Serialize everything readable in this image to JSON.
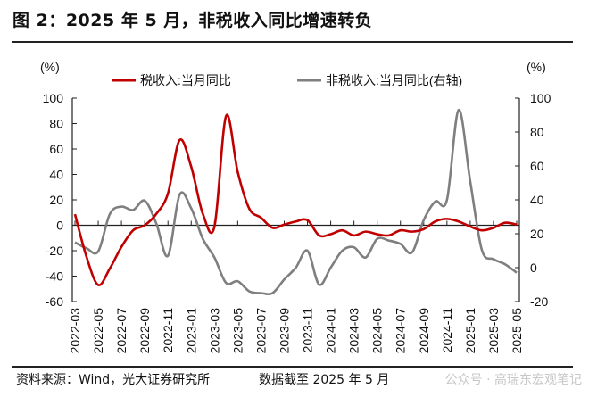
{
  "title": "图 2：2025 年 5 月，非税收入同比增速转负",
  "footer": {
    "source": "资料来源：Wind，光大证券研究所",
    "date_note": "数据截至 2025 年 5 月",
    "watermark": "公众号 · 高瑞东宏观笔记"
  },
  "chart_data": {
    "type": "line",
    "title": "",
    "left_axis": {
      "unit_label": "(%)",
      "range": [
        -60,
        100
      ],
      "ticks": [
        100,
        80,
        60,
        40,
        20,
        0,
        -20,
        -40,
        -60
      ]
    },
    "right_axis": {
      "unit_label": "(%)",
      "range": [
        -20,
        100
      ],
      "ticks": [
        100,
        80,
        60,
        40,
        20,
        0,
        -20
      ]
    },
    "grid": false,
    "legend_position": "top",
    "x_tick_labels": [
      "2022-03",
      "2022-05",
      "2022-07",
      "2022-09",
      "2022-11",
      "2023-01",
      "2023-03",
      "2023-05",
      "2023-07",
      "2023-09",
      "2023-11",
      "2024-01",
      "2024-03",
      "2024-05",
      "2024-07",
      "2024-09",
      "2024-11",
      "2025-01",
      "2025-03",
      "2025-05"
    ],
    "x": [
      "2022-03",
      "2022-04",
      "2022-05",
      "2022-06",
      "2022-07",
      "2022-08",
      "2022-09",
      "2022-10",
      "2022-11",
      "2022-12",
      "2023-01",
      "2023-02",
      "2023-03",
      "2023-04",
      "2023-05",
      "2023-06",
      "2023-07",
      "2023-08",
      "2023-09",
      "2023-10",
      "2023-11",
      "2023-12",
      "2024-01",
      "2024-02",
      "2024-03",
      "2024-04",
      "2024-05",
      "2024-06",
      "2024-07",
      "2024-08",
      "2024-09",
      "2024-10",
      "2024-11",
      "2024-12",
      "2025-01",
      "2025-02",
      "2025-03",
      "2025-04",
      "2025-05"
    ],
    "series": [
      {
        "name": "税收入:当月同比",
        "axis": "left",
        "color": "#c00000",
        "values": [
          8.7,
          -25,
          -47,
          -34,
          -17,
          -4,
          0,
          9,
          25,
          67,
          46,
          9,
          -1,
          86,
          42,
          13,
          6,
          -2,
          0.5,
          3,
          4,
          -8,
          -7,
          -4,
          -8,
          -5,
          -7,
          -8,
          -4,
          -5,
          -3,
          3,
          5,
          3,
          -1,
          -4,
          -2,
          2,
          0.5
        ]
      },
      {
        "name": "非税收入:当月同比(右轴)",
        "axis": "right",
        "color": "#7f7f7f",
        "values": [
          14.9,
          11.4,
          9.6,
          31.6,
          36,
          34,
          39.5,
          26,
          7,
          43,
          35,
          17,
          6,
          -9,
          -8,
          -14,
          -15,
          -15,
          -7,
          0,
          10,
          -10,
          0,
          10,
          12,
          6,
          17,
          16,
          14,
          9,
          28,
          39,
          40,
          93,
          51,
          10.5,
          5,
          2,
          -3
        ]
      }
    ]
  }
}
